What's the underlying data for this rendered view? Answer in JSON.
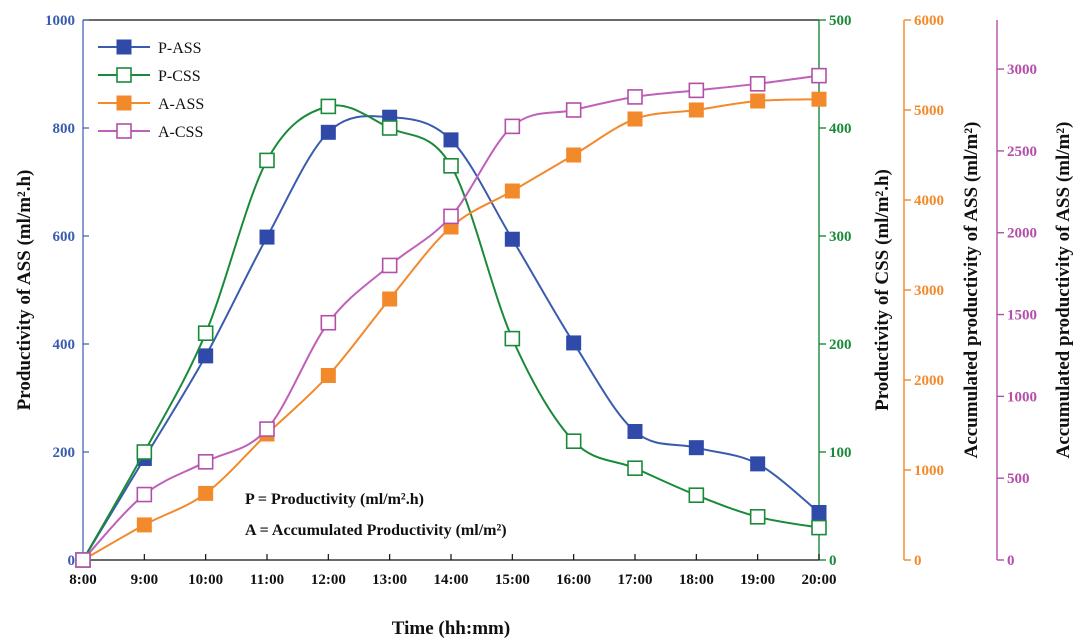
{
  "chart_data": {
    "type": "line",
    "xlabel": "Time (hh:mm)",
    "categories": [
      "8:00",
      "9:00",
      "10:00",
      "11:00",
      "12:00",
      "13:00",
      "14:00",
      "15:00",
      "16:00",
      "17:00",
      "18:00",
      "19:00",
      "20:00"
    ],
    "axes": {
      "left": {
        "label": "Productivity of ASS (ml/m².h)",
        "range": [
          0,
          1000
        ],
        "ticks": [
          0,
          200,
          400,
          600,
          800,
          1000
        ],
        "color": "#3a5cad"
      },
      "right1": {
        "label": "Productivity of CSS (ml/m².h)",
        "range": [
          0,
          500
        ],
        "ticks": [
          0,
          100,
          200,
          300,
          400,
          500
        ],
        "color": "#1a8a3a"
      },
      "right2": {
        "label": "Accumulated productivity of ASS (ml/m²)",
        "range": [
          0,
          6000
        ],
        "ticks": [
          0,
          1000,
          2000,
          3000,
          4000,
          5000,
          6000
        ],
        "color": "#f28a2c"
      },
      "right3": {
        "label": "Accumulated productivity of ASS (ml/m²)",
        "range": [
          0,
          3300
        ],
        "ticks": [
          0,
          500,
          1000,
          1500,
          2000,
          2500,
          3000
        ],
        "color": "#b34fa8"
      }
    },
    "series": [
      {
        "name": "P-ASS",
        "axis": "left",
        "color": "#2f4aa8",
        "line_color": "#3a5cad",
        "marker": "filled-square",
        "values": [
          0,
          188,
          378,
          598,
          792,
          820,
          778,
          594,
          402,
          238,
          208,
          178,
          88
        ]
      },
      {
        "name": "P-CSS",
        "axis": "right1",
        "color": "#1a8a3a",
        "line_color": "#1a8a3a",
        "marker": "open-square",
        "values": [
          0,
          100,
          210,
          370,
          420,
          400,
          365,
          205,
          110,
          85,
          60,
          40,
          30
        ]
      },
      {
        "name": "A-ASS",
        "axis": "right2",
        "color": "#f28a2c",
        "line_color": "#f28a2c",
        "marker": "filled-square",
        "values": [
          0,
          390,
          740,
          1400,
          2050,
          2900,
          3700,
          4100,
          4500,
          4900,
          5000,
          5100,
          5120
        ]
      },
      {
        "name": "A-CSS",
        "axis": "right3",
        "color": "#b34fa8",
        "line_color": "#c060b8",
        "marker": "open-square",
        "values": [
          0,
          400,
          600,
          800,
          1450,
          1800,
          2100,
          2650,
          2750,
          2830,
          2870,
          2910,
          2960
        ]
      }
    ],
    "annotations": [
      "P = Productivity (ml/m².h)",
      "A = Accumulated Productivity (ml/m²)"
    ],
    "legend_position": "top-left",
    "grid": false
  }
}
